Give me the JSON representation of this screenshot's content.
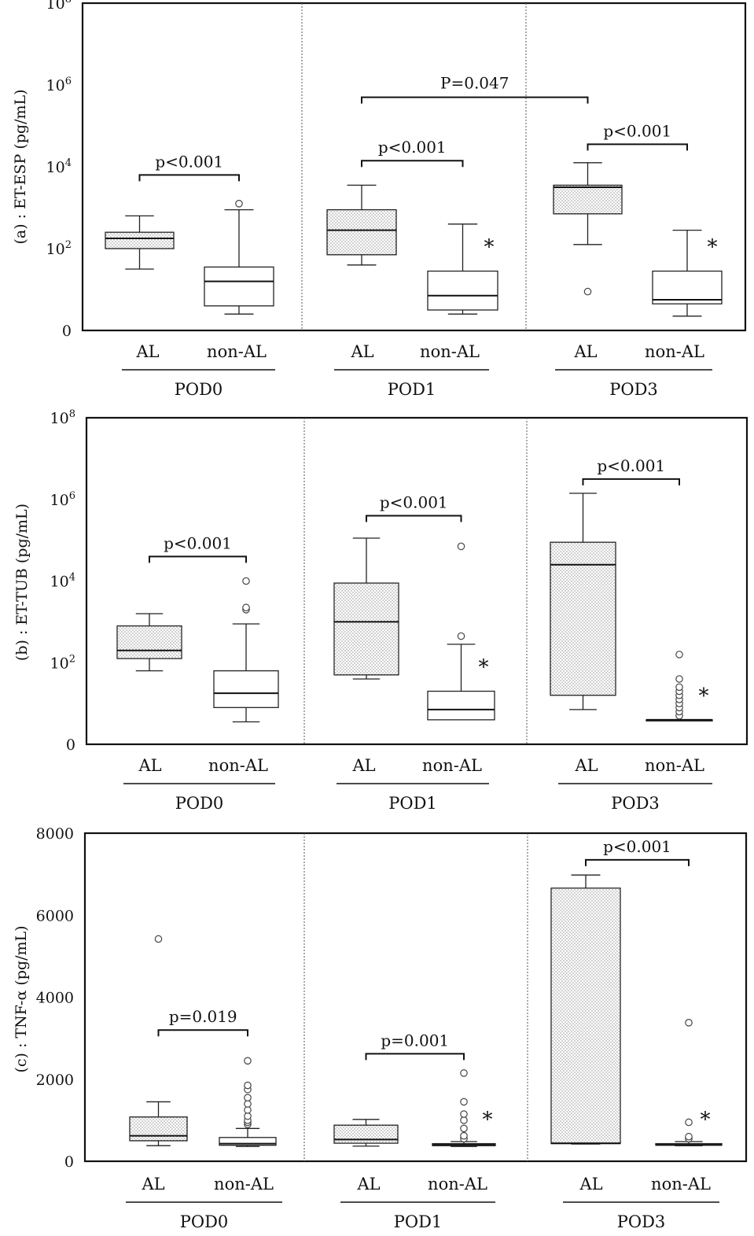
{
  "chart_data": [
    {
      "type": "box",
      "ylabel": "(a) : ET-ESP (pg/mL)",
      "scale": "log",
      "yticks": [
        {
          "value": 0,
          "base": "0"
        },
        {
          "value": 2,
          "base": "10",
          "exp": "2"
        },
        {
          "value": 4,
          "base": "10",
          "exp": "4"
        },
        {
          "value": 6,
          "base": "10",
          "exp": "6"
        },
        {
          "value": 8,
          "base": "10",
          "exp": "8"
        }
      ],
      "groups": [
        {
          "label": "POD0",
          "boxes": [
            {
              "label": "AL",
              "shaded": true,
              "min": 1.5,
              "q1": 2.0,
              "median": 2.25,
              "q3": 2.4,
              "max": 2.8,
              "outliers": []
            },
            {
              "label": "non-AL",
              "shaded": false,
              "min": 0.4,
              "q1": 0.6,
              "median": 1.2,
              "q3": 1.55,
              "max": 2.95,
              "outliers": [
                3.1
              ]
            }
          ],
          "sig": {
            "text": "p<0.001",
            "level": 3.8
          },
          "star": false
        },
        {
          "label": "POD1",
          "boxes": [
            {
              "label": "AL",
              "shaded": true,
              "min": 1.6,
              "q1": 1.85,
              "median": 2.45,
              "q3": 2.95,
              "max": 3.55,
              "outliers": []
            },
            {
              "label": "non-AL",
              "shaded": false,
              "min": 0.4,
              "q1": 0.5,
              "median": 0.85,
              "q3": 1.45,
              "max": 2.6,
              "outliers": []
            }
          ],
          "sig": {
            "text": "p<0.001",
            "level": 4.15
          },
          "star": true
        },
        {
          "label": "POD3",
          "boxes": [
            {
              "label": "AL",
              "shaded": true,
              "min": 2.1,
              "q1": 2.85,
              "median": 3.5,
              "q3": 3.55,
              "max": 4.1,
              "outliers": [
                0.95
              ]
            },
            {
              "label": "non-AL",
              "shaded": false,
              "min": 0.35,
              "q1": 0.65,
              "median": 0.75,
              "q3": 1.45,
              "max": 2.45,
              "outliers": []
            }
          ],
          "sig": {
            "text": "p<0.001",
            "level": 4.55
          },
          "star": true
        }
      ],
      "cross_sig": {
        "text": "P=0.047",
        "from_group": 1,
        "to_group": 2,
        "level": 5.7
      }
    },
    {
      "type": "box",
      "ylabel": "(b) : ET-TUB (pg/mL)",
      "scale": "log",
      "yticks": [
        {
          "value": 0,
          "base": "0"
        },
        {
          "value": 2,
          "base": "10",
          "exp": "2"
        },
        {
          "value": 4,
          "base": "10",
          "exp": "4"
        },
        {
          "value": 6,
          "base": "10",
          "exp": "6"
        },
        {
          "value": 8,
          "base": "10",
          "exp": "8"
        }
      ],
      "groups": [
        {
          "label": "POD0",
          "boxes": [
            {
              "label": "AL",
              "shaded": true,
              "min": 1.8,
              "q1": 2.1,
              "median": 2.3,
              "q3": 2.9,
              "max": 3.2,
              "outliers": []
            },
            {
              "label": "non-AL",
              "shaded": false,
              "min": 0.55,
              "q1": 0.9,
              "median": 1.25,
              "q3": 1.8,
              "max": 2.95,
              "outliers": [
                3.3,
                3.35,
                4.0
              ]
            }
          ],
          "sig": {
            "text": "p<0.001",
            "level": 4.6
          },
          "star": false
        },
        {
          "label": "POD1",
          "boxes": [
            {
              "label": "AL",
              "shaded": true,
              "min": 1.6,
              "q1": 1.7,
              "median": 3.0,
              "q3": 3.95,
              "max": 5.05,
              "outliers": []
            },
            {
              "label": "non-AL",
              "shaded": false,
              "min": 0.6,
              "q1": 0.6,
              "median": 0.85,
              "q3": 1.3,
              "max": 2.45,
              "outliers": [
                2.65,
                4.85
              ]
            }
          ],
          "sig": {
            "text": "p<0.001",
            "level": 5.6
          },
          "star": true
        },
        {
          "label": "POD3",
          "boxes": [
            {
              "label": "AL",
              "shaded": true,
              "min": 0.85,
              "q1": 1.2,
              "median": 4.4,
              "q3": 4.95,
              "max": 6.15,
              "outliers": []
            },
            {
              "label": "non-AL",
              "shaded": false,
              "min": 0.6,
              "q1": 0.6,
              "median": 0.6,
              "q3": 0.6,
              "max": 0.6,
              "outliers": [
                0.7,
                0.8,
                0.9,
                1.0,
                1.1,
                1.2,
                1.3,
                1.4,
                1.6,
                2.2
              ]
            }
          ],
          "sig": {
            "text": "p<0.001",
            "level": 6.5
          },
          "star": true
        }
      ],
      "cross_sig": null
    },
    {
      "type": "box",
      "ylabel": "(c) : TNF-α (pg/mL)",
      "scale": "linear",
      "yticks": [
        {
          "value": 0,
          "base": "0"
        },
        {
          "value": 2000,
          "base": "2000"
        },
        {
          "value": 4000,
          "base": "4000"
        },
        {
          "value": 6000,
          "base": "6000"
        },
        {
          "value": 8000,
          "base": "8000"
        }
      ],
      "groups": [
        {
          "label": "POD0",
          "boxes": [
            {
              "label": "AL",
              "shaded": true,
              "min": 380,
              "q1": 500,
              "median": 620,
              "q3": 1080,
              "max": 1450,
              "outliers": [
                5420
              ]
            },
            {
              "label": "non-AL",
              "shaded": false,
              "min": 360,
              "q1": 390,
              "median": 430,
              "q3": 580,
              "max": 800,
              "outliers": [
                900,
                950,
                1000,
                1100,
                1250,
                1400,
                1550,
                1750,
                1850,
                2450
              ]
            }
          ],
          "sig": {
            "text": "p=0.019",
            "level": 3200
          },
          "star": false
        },
        {
          "label": "POD1",
          "boxes": [
            {
              "label": "AL",
              "shaded": true,
              "min": 370,
              "q1": 440,
              "median": 530,
              "q3": 880,
              "max": 1020,
              "outliers": []
            },
            {
              "label": "non-AL",
              "shaded": false,
              "min": 360,
              "q1": 380,
              "median": 400,
              "q3": 430,
              "max": 480,
              "outliers": [
                550,
                620,
                800,
                1000,
                1150,
                1450,
                2150
              ]
            }
          ],
          "sig": {
            "text": "p=0.001",
            "level": 2620
          },
          "star": true
        },
        {
          "label": "POD3",
          "boxes": [
            {
              "label": "AL",
              "shaded": true,
              "min": 420,
              "q1": 430,
              "median": 440,
              "q3": 6660,
              "max": 6980,
              "outliers": []
            },
            {
              "label": "non-AL",
              "shaded": false,
              "min": 380,
              "q1": 390,
              "median": 400,
              "q3": 430,
              "max": 480,
              "outliers": [
                550,
                600,
                950,
                3380
              ]
            }
          ],
          "sig": {
            "text": "p<0.001",
            "level": 7350
          },
          "star": true
        }
      ],
      "cross_sig": null
    }
  ]
}
